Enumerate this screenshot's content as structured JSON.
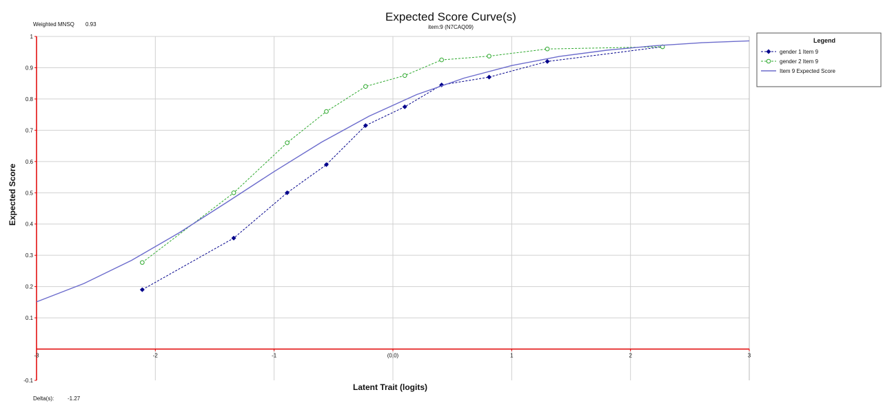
{
  "header": {
    "fit_label": "Weighted MNSQ",
    "fit_value": "0.93"
  },
  "footer": {
    "delta_label": "Delta(s):",
    "delta_value": "-1.27"
  },
  "legend": {
    "title": "Legend"
  },
  "chart_data": {
    "type": "line",
    "title": "Expected Score Curve(s)",
    "subtitle": "item:9 (N7CAQ09)",
    "xlabel": "Latent Trait (logits)",
    "ylabel": "Expected Score",
    "xlim": [
      -3,
      3
    ],
    "ylim": [
      -0.1,
      1
    ],
    "x_ticks": [
      "-3",
      "-2",
      "-1",
      "(0,0)",
      "1",
      "2",
      "3"
    ],
    "y_ticks": [
      "-0.1",
      "0.1",
      "0.2",
      "0.3",
      "0.4",
      "0.5",
      "0.6",
      "0.7",
      "0.8",
      "0.9",
      "1"
    ],
    "grid": true,
    "legend_position": "top-right",
    "series": [
      {
        "name": "gender 1 Item 9",
        "color": "#00008b",
        "line_style": "dashed",
        "marker": "filled-diamond",
        "x": [
          -2.11,
          -1.34,
          -0.89,
          -0.56,
          -0.23,
          0.1,
          0.41,
          0.81,
          1.3,
          2.27
        ],
        "y": [
          0.19,
          0.355,
          0.5,
          0.59,
          0.715,
          0.775,
          0.845,
          0.87,
          0.92,
          0.967
        ]
      },
      {
        "name": "gender 2 Item 9",
        "color": "#2ca82c",
        "line_style": "dashed",
        "marker": "open-circle",
        "x": [
          -2.11,
          -1.34,
          -0.89,
          -0.56,
          -0.23,
          0.1,
          0.41,
          0.81,
          1.3,
          2.27
        ],
        "y": [
          0.277,
          0.5,
          0.66,
          0.76,
          0.84,
          0.875,
          0.925,
          0.937,
          0.96,
          0.967
        ]
      },
      {
        "name": "Item 9 Expected Score",
        "color": "#6b6bcc",
        "line_style": "solid",
        "marker": "none",
        "x": [
          -3,
          -2.6,
          -2.2,
          -1.8,
          -1.4,
          -1.0,
          -0.6,
          -0.2,
          0.2,
          0.6,
          1.0,
          1.4,
          1.8,
          2.2,
          2.6,
          3.0
        ],
        "y": [
          0.151,
          0.21,
          0.284,
          0.372,
          0.469,
          0.568,
          0.662,
          0.745,
          0.814,
          0.867,
          0.907,
          0.936,
          0.956,
          0.97,
          0.98,
          0.986
        ]
      }
    ]
  }
}
